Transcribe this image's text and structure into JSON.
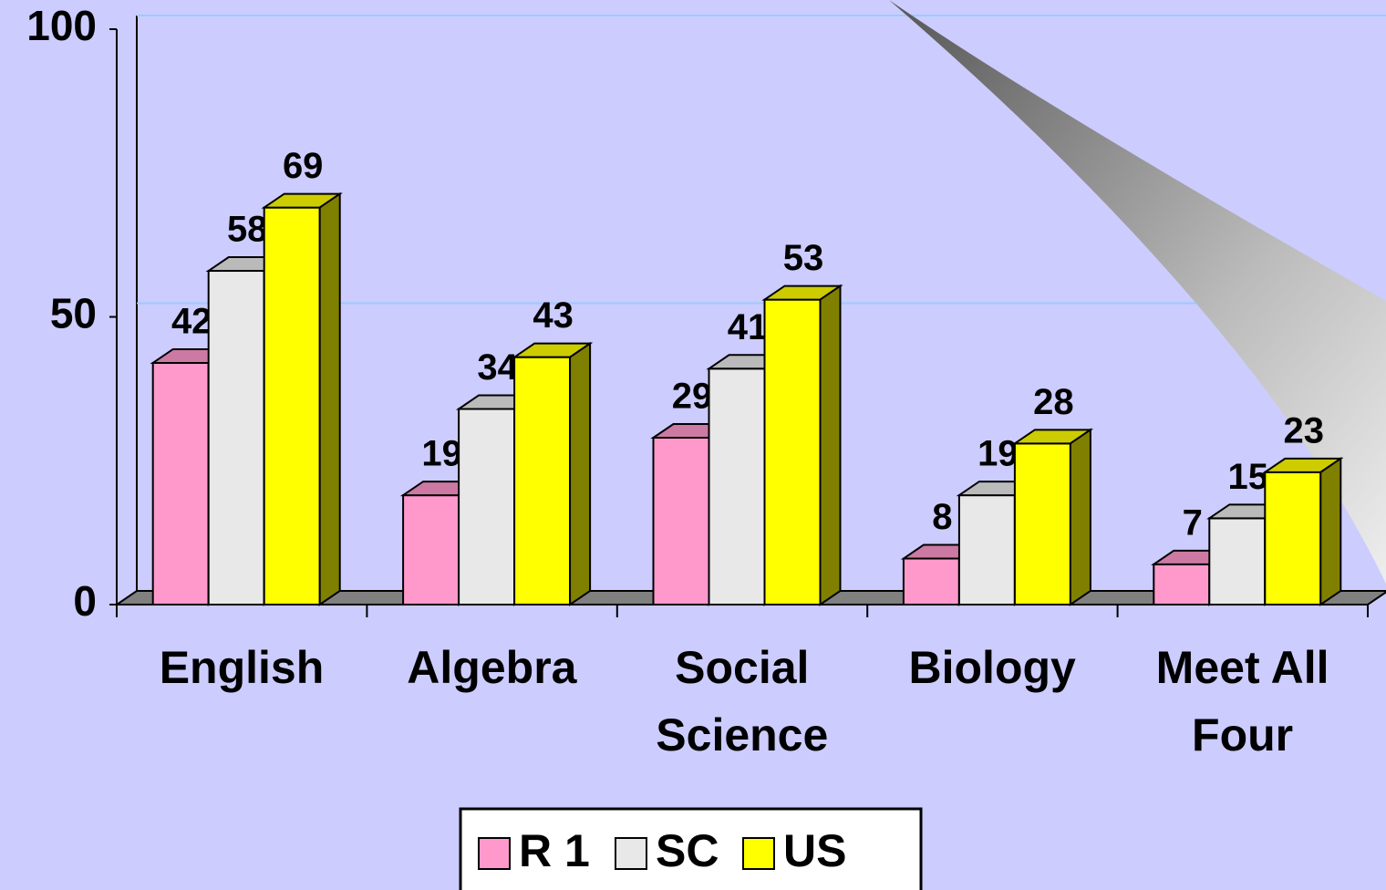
{
  "chart_data": {
    "type": "bar3d",
    "categories": [
      "English",
      "Algebra",
      "Social Science",
      "Biology",
      "Meet All Four"
    ],
    "series": [
      {
        "name": "R 1",
        "color": "#ff99cc",
        "values": [
          42,
          19,
          29,
          8,
          7
        ]
      },
      {
        "name": "SC",
        "color": "#e8e8e8",
        "values": [
          58,
          34,
          41,
          19,
          15
        ]
      },
      {
        "name": "US",
        "color": "#ffff00",
        "values": [
          69,
          43,
          53,
          28,
          23
        ]
      }
    ],
    "ylim": [
      0,
      100
    ],
    "yticks": [
      0,
      50,
      100
    ],
    "grid": true,
    "legend": "bottom"
  }
}
